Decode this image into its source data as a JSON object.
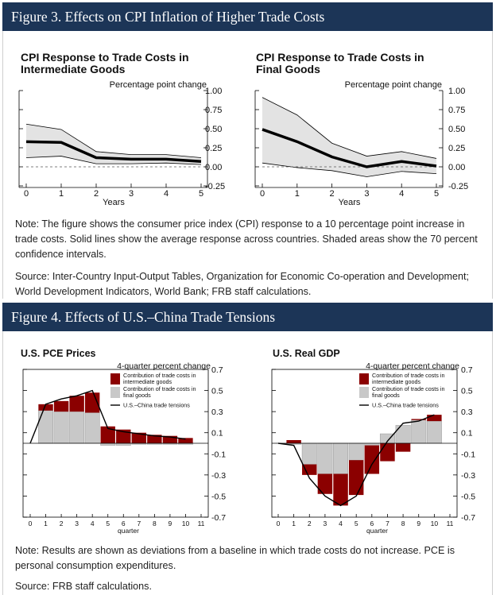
{
  "fig3": {
    "title": "Figure 3. Effects on CPI Inflation of Higher Trade Costs",
    "note": "Note: The figure shows the consumer price index (CPI) response to a 10 percentage point increase in trade costs. Solid lines show the average response across countries. Shaded areas show the 70 percent confidence intervals.",
    "source": "Source: Inter-Country Input-Output Tables, Organization for Economic Co-operation and Development; World Development Indicators, World Bank; FRB staff calculations."
  },
  "fig4": {
    "title": "Figure 4. Effects of U.S.–China Trade Tensions",
    "note": "Note: Results are shown as deviations from a baseline in which trade costs do not increase. PCE is personal consumption expenditures.",
    "source": "Source: FRB staff calculations."
  },
  "chart_data": [
    {
      "type": "line",
      "title": "CPI Response to Trade Costs in Intermediate Goods",
      "ylabel": "Percentage point change",
      "xlabel": "Years",
      "x": [
        0,
        1,
        2,
        3,
        4,
        5
      ],
      "ylim": [
        -0.25,
        1.0
      ],
      "yticks": [
        "1.00",
        "0.75",
        "0.50",
        "0.25",
        "0.00",
        "-0.25"
      ],
      "series": [
        {
          "values": [
            0.33,
            0.32,
            0.12,
            0.1,
            0.1,
            0.07
          ]
        }
      ],
      "upper": [
        0.56,
        0.49,
        0.2,
        0.16,
        0.16,
        0.12
      ],
      "lower": [
        0.12,
        0.14,
        0.04,
        0.04,
        0.05,
        0.03
      ],
      "reference_line": 0,
      "colors": {
        "line": "#000000",
        "band": "#e3e3e3"
      }
    },
    {
      "type": "line",
      "title": "CPI Response to Trade Costs in Final Goods",
      "ylabel": "Percentage point change",
      "xlabel": "Years",
      "x": [
        0,
        1,
        2,
        3,
        4,
        5
      ],
      "ylim": [
        -0.25,
        1.0
      ],
      "yticks": [
        "1.00",
        "0.75",
        "0.50",
        "0.25",
        "0.00",
        "-0.25"
      ],
      "series": [
        {
          "values": [
            0.49,
            0.33,
            0.13,
            0.0,
            0.07,
            0.01
          ]
        }
      ],
      "upper": [
        0.91,
        0.68,
        0.31,
        0.14,
        0.2,
        0.11
      ],
      "lower": [
        0.05,
        -0.01,
        -0.05,
        -0.13,
        -0.06,
        -0.09
      ],
      "reference_line": 0,
      "colors": {
        "line": "#000000",
        "band": "#e3e3e3"
      }
    },
    {
      "type": "bar",
      "title": "U.S. PCE Prices",
      "ylabel": "4-quarter percent change",
      "xlabel": "quarter",
      "x": [
        0,
        1,
        2,
        3,
        4,
        5,
        6,
        7,
        8,
        9,
        10,
        11
      ],
      "ylim": [
        -0.7,
        0.7
      ],
      "yticks": [
        "0.7",
        "0.5",
        "0.3",
        "0.1",
        "-0.1",
        "-0.3",
        "-0.5",
        "-0.7"
      ],
      "series": [
        {
          "name": "Contribution of trade costs in intermediate goods",
          "type": "bar",
          "x": [
            1,
            2,
            3,
            4,
            5,
            6,
            7,
            8,
            9,
            10
          ],
          "values": [
            0.06,
            0.1,
            0.15,
            0.19,
            0.16,
            0.13,
            0.1,
            0.08,
            0.07,
            0.05
          ]
        },
        {
          "name": "Contribution of trade costs in final goods",
          "type": "bar",
          "x": [
            1,
            2,
            3,
            4,
            5,
            6,
            7,
            8,
            9,
            10
          ],
          "values": [
            0.31,
            0.3,
            0.3,
            0.29,
            -0.02,
            -0.02,
            -0.01,
            -0.01,
            -0.01,
            -0.01
          ]
        },
        {
          "name": "U.S.–China trade tensions",
          "type": "line",
          "x": [
            0,
            1,
            2,
            3,
            4,
            5,
            6,
            7,
            8,
            9,
            10
          ],
          "values": [
            0.0,
            0.37,
            0.42,
            0.45,
            0.5,
            0.14,
            0.11,
            0.09,
            0.07,
            0.06,
            0.04
          ]
        }
      ],
      "colors": {
        "intermediate": "#8b0000",
        "final": "#c8c8c8",
        "line": "#000000"
      }
    },
    {
      "type": "bar",
      "title": "U.S. Real GDP",
      "ylabel": "4-quarter percent change",
      "xlabel": "quarter",
      "x": [
        0,
        1,
        2,
        3,
        4,
        5,
        6,
        7,
        8,
        9,
        10,
        11
      ],
      "ylim": [
        -0.7,
        0.7
      ],
      "yticks": [
        "0.7",
        "0.5",
        "0.3",
        "0.1",
        "-0.1",
        "-0.3",
        "-0.5",
        "-0.7"
      ],
      "series": [
        {
          "name": "Contribution of trade costs in intermediate goods",
          "type": "bar",
          "x": [
            1,
            2,
            3,
            4,
            5,
            6,
            7,
            8,
            9,
            10
          ],
          "values": [
            0.03,
            -0.1,
            -0.19,
            -0.3,
            -0.33,
            -0.27,
            -0.17,
            -0.08,
            0.01,
            0.06
          ]
        },
        {
          "name": "Contribution of trade costs in final goods",
          "type": "bar",
          "x": [
            1,
            2,
            3,
            4,
            5,
            6,
            7,
            8,
            9,
            10
          ],
          "values": [
            -0.01,
            -0.2,
            -0.29,
            -0.29,
            -0.16,
            -0.02,
            0.09,
            0.17,
            0.22,
            0.21
          ]
        },
        {
          "name": "U.S.–China trade tensions",
          "type": "line",
          "x": [
            0,
            1,
            2,
            3,
            4,
            5,
            6,
            7,
            8,
            9,
            10
          ],
          "values": [
            0.0,
            -0.02,
            -0.33,
            -0.5,
            -0.59,
            -0.5,
            -0.2,
            0.02,
            0.19,
            0.21,
            0.27
          ]
        }
      ],
      "colors": {
        "intermediate": "#8b0000",
        "final": "#c8c8c8",
        "line": "#000000"
      }
    }
  ]
}
